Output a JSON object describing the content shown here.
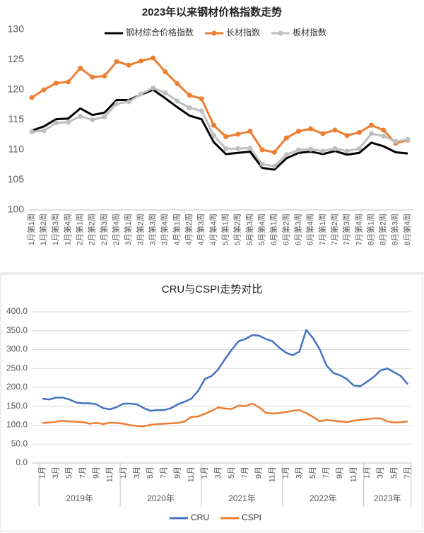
{
  "chart_data": [
    {
      "type": "line",
      "title": "2023年以来钢材价格指数走势",
      "legend": "top",
      "grid": false,
      "categories": [
        "1月第1周",
        "1月第2周",
        "1月第3周",
        "1月第4周",
        "2月第1周",
        "2月第2周",
        "2月第3周",
        "2月第4周",
        "3月第1周",
        "3月第2周",
        "3月第3周",
        "3月第4周",
        "4月第1周",
        "4月第2周",
        "4月第3周",
        "4月第4周",
        "5月第1周",
        "5月第2周",
        "5月第3周",
        "5月第4周",
        "6月第1周",
        "6月第2周",
        "6月第3周",
        "6月第4周",
        "7月第1周",
        "7月第2周",
        "7月第3周",
        "7月第4周",
        "8月第1周",
        "8月第2周",
        "8月第3周",
        "8月第4周"
      ],
      "ylim": [
        100,
        130
      ],
      "yticks": [
        100,
        105,
        110,
        115,
        120,
        125,
        130
      ],
      "series": [
        {
          "name": "钢材综合价格指数",
          "color": "#000000",
          "marker": false,
          "values": [
            113.2,
            113.9,
            115.1,
            115.2,
            116.9,
            115.8,
            116.2,
            118.3,
            118.3,
            119.2,
            120,
            118.6,
            117.1,
            115.7,
            115.1,
            111.3,
            109.3,
            109.5,
            109.7,
            107,
            106.7,
            108.6,
            109.5,
            109.7,
            109.3,
            109.8,
            109.2,
            109.5,
            111.2,
            110.6,
            109.6,
            109.4
          ]
        },
        {
          "name": "长材指数",
          "color": "#ed7d31",
          "marker": true,
          "values": [
            118.7,
            120,
            121.1,
            121.3,
            123.6,
            122.1,
            122.3,
            124.7,
            124.1,
            124.8,
            125.3,
            123,
            121,
            119.1,
            118.5,
            114.1,
            112.2,
            112.6,
            113.1,
            110,
            109.6,
            112,
            113.1,
            113.5,
            112.7,
            113.3,
            112.4,
            112.9,
            114.1,
            113.3,
            111.1,
            111.6
          ]
        },
        {
          "name": "板材指数",
          "color": "#bfbfbf",
          "marker": true,
          "values": [
            113,
            113.2,
            114.5,
            114.6,
            115.6,
            115,
            115.5,
            117.7,
            118,
            119.3,
            120.3,
            119.5,
            118.1,
            117,
            116.5,
            112.4,
            110.2,
            110.2,
            110.3,
            107.6,
            107.3,
            109.2,
            110,
            110.1,
            109.8,
            110.2,
            109.8,
            110.2,
            112.7,
            112.3,
            111.4,
            111.7
          ]
        }
      ]
    },
    {
      "type": "line",
      "title": "CRU与CSPI走势对比",
      "legend": "bottom",
      "grid": true,
      "categories": [
        "1月",
        null,
        "3月",
        null,
        "5月",
        null,
        "7月",
        null,
        "9月",
        null,
        "11月",
        null,
        "1月",
        null,
        "3月",
        null,
        "5月",
        null,
        "7月",
        null,
        "9月",
        null,
        "11月",
        null,
        "1月",
        null,
        "3月",
        null,
        "5月",
        null,
        "7月",
        null,
        "9月",
        null,
        "11月",
        null,
        "1月",
        null,
        "3月",
        null,
        "5月",
        null,
        "7月",
        null,
        "9月",
        null,
        "11月",
        null,
        "1月",
        null,
        "3月",
        null,
        "5月",
        null,
        "7月"
      ],
      "years": [
        "2019年",
        "2020年",
        "2021年",
        "2022年",
        "2023年"
      ],
      "ylim": [
        0,
        400
      ],
      "yticks": [
        {
          "value": 0,
          "label": "0.0"
        },
        {
          "value": 50,
          "label": "50.0"
        },
        {
          "value": 100,
          "label": "100.0"
        },
        {
          "value": 150,
          "label": "150.0"
        },
        {
          "value": 200,
          "label": "200.0"
        },
        {
          "value": 250,
          "label": "250.0"
        },
        {
          "value": 300,
          "label": "300.0"
        },
        {
          "value": 350,
          "label": "350.0"
        },
        {
          "value": 400,
          "label": "400.0"
        }
      ],
      "series": [
        {
          "name": "CRU",
          "color": "#4472c4",
          "marker": false,
          "values": [
            170,
            168,
            173,
            173,
            168,
            160,
            158,
            158,
            155,
            145,
            142,
            148,
            157,
            157,
            155,
            145,
            138,
            140,
            140,
            145,
            155,
            162,
            170,
            190,
            222,
            230,
            248,
            275,
            300,
            322,
            328,
            338,
            337,
            328,
            322,
            305,
            292,
            285,
            295,
            352,
            330,
            300,
            258,
            238,
            232,
            222,
            205,
            203,
            215,
            228,
            245,
            250,
            240,
            230,
            208
          ]
        },
        {
          "name": "CSPI",
          "color": "#ed7d31",
          "marker": false,
          "values": [
            106,
            107,
            109,
            112,
            110,
            109,
            108,
            104,
            106,
            103,
            107,
            106,
            104,
            100,
            98,
            97,
            101,
            103,
            104,
            105,
            106,
            110,
            122,
            123,
            130,
            138,
            147,
            144,
            143,
            152,
            150,
            157,
            148,
            133,
            131,
            132,
            135,
            138,
            140,
            132,
            122,
            110,
            114,
            112,
            110,
            108,
            112,
            114,
            116,
            118,
            118,
            110,
            107,
            108,
            110
          ]
        }
      ]
    }
  ]
}
